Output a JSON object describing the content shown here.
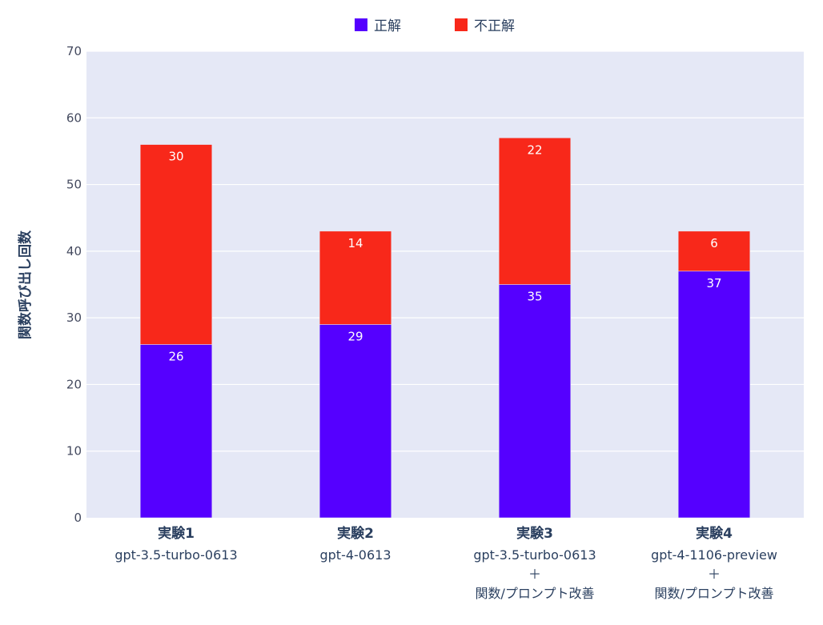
{
  "chart_data": {
    "type": "bar",
    "barmode": "stack",
    "categories": [
      {
        "name": "実験1",
        "lines": [
          "gpt-3.5-turbo-0613"
        ]
      },
      {
        "name": "実験2",
        "lines": [
          "gpt-4-0613"
        ]
      },
      {
        "name": "実験3",
        "lines": [
          "gpt-3.5-turbo-0613",
          "＋",
          "関数/プロンプト改善"
        ]
      },
      {
        "name": "実験4",
        "lines": [
          "gpt-4-1106-preview",
          "＋",
          "関数/プロンプト改善"
        ]
      }
    ],
    "series": [
      {
        "name": "正解",
        "color": "#5500ff",
        "values": [
          26,
          29,
          35,
          37
        ]
      },
      {
        "name": "不正解",
        "color": "#f8281a",
        "values": [
          30,
          14,
          22,
          6
        ]
      }
    ],
    "title": "",
    "xlabel": "",
    "ylabel": "関数呼び出し回数",
    "ylim": [
      0,
      70
    ],
    "yticks": [
      0,
      10,
      20,
      30,
      40,
      50,
      60,
      70
    ],
    "grid": true,
    "legend_position": "top-center",
    "plot_bgcolor": "#e5e8f6"
  }
}
